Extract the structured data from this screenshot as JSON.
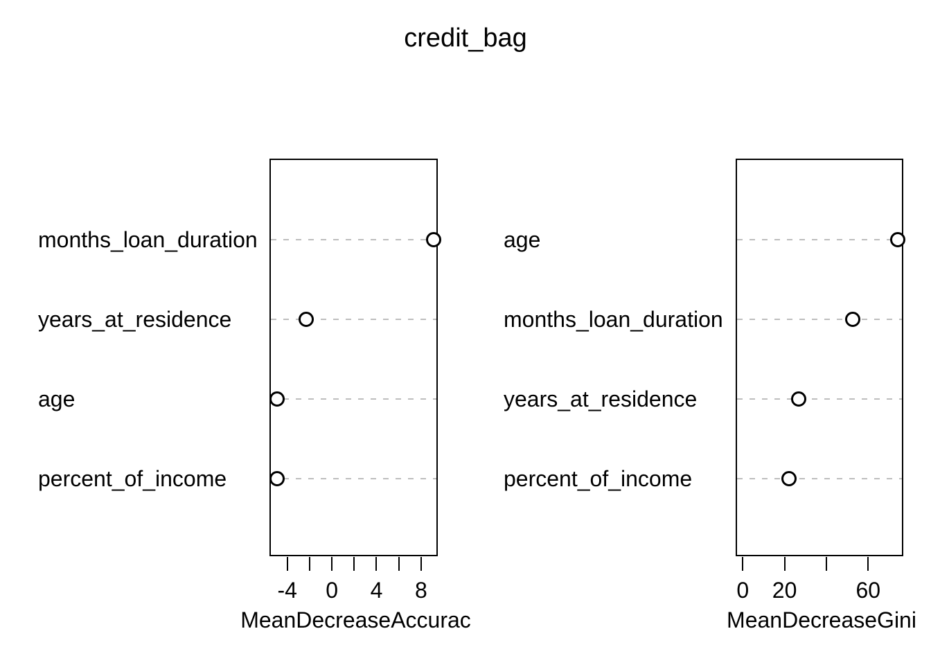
{
  "title": "credit_bag",
  "colors": {
    "foreground": "#000000",
    "background": "#ffffff",
    "dotted_line": "#bdbdbd"
  },
  "chart_data": [
    {
      "type": "scatter",
      "style": "dotchart",
      "xlabel": "MeanDecreaseAccurac",
      "ylabel": "",
      "xlim": [
        -5.6,
        9.5
      ],
      "grid": "dotted-horizontal",
      "point_marker": "open-circle",
      "items": [
        {
          "label": "months_loan_duration",
          "value": 9.1
        },
        {
          "label": "years_at_residence",
          "value": -2.3
        },
        {
          "label": "age",
          "value": -4.9
        },
        {
          "label": "percent_of_income",
          "value": -4.9
        }
      ],
      "ticks": [
        {
          "v": -4,
          "t": "-4"
        },
        {
          "v": -2,
          "t": ""
        },
        {
          "v": 0,
          "t": "0"
        },
        {
          "v": 2,
          "t": ""
        },
        {
          "v": 4,
          "t": "4"
        },
        {
          "v": 6,
          "t": ""
        },
        {
          "v": 8,
          "t": "8"
        }
      ]
    },
    {
      "type": "scatter",
      "style": "dotchart",
      "xlabel": "MeanDecreaseGini",
      "ylabel": "",
      "xlim": [
        -3.4,
        76.8
      ],
      "grid": "dotted-horizontal",
      "point_marker": "open-circle",
      "items": [
        {
          "label": "age",
          "value": 74.0
        },
        {
          "label": "months_loan_duration",
          "value": 52.5
        },
        {
          "label": "years_at_residence",
          "value": 26.7
        },
        {
          "label": "percent_of_income",
          "value": 22.1
        }
      ],
      "ticks": [
        {
          "v": 0,
          "t": "0"
        },
        {
          "v": 20,
          "t": "20"
        },
        {
          "v": 40,
          "t": ""
        },
        {
          "v": 60,
          "t": "60"
        }
      ]
    }
  ]
}
